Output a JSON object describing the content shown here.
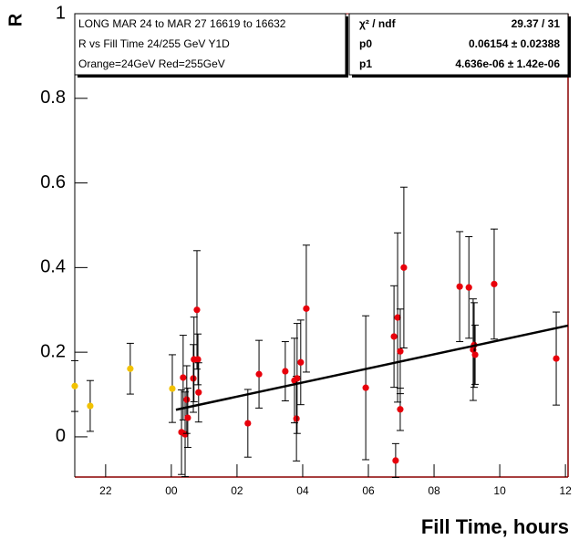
{
  "chart_data": {
    "type": "scatter",
    "y_label": "R",
    "x_label": "Fill Time, hours",
    "annotations": [
      "LONG MAR 24 to MAR 27 16619 to 16632",
      "R vs Fill Time 24/255 GeV Y1D",
      "Orange=24GeV  Red=255GeV"
    ],
    "stats": {
      "labels": [
        "χ² / ndf",
        "p0",
        "p1"
      ],
      "values": [
        "29.37 / 31",
        "0.06154 ± 0.02388",
        "4.636e-06 ± 1.42e-06"
      ]
    },
    "xlim": [
      -2.94,
      12.08
    ],
    "ylim": [
      -0.095,
      1
    ],
    "xticks": [
      {
        "value": -2,
        "label": "22"
      },
      {
        "value": 0,
        "label": "00"
      },
      {
        "value": 2,
        "label": "02"
      },
      {
        "value": 4,
        "label": "04"
      },
      {
        "value": 6,
        "label": "06"
      },
      {
        "value": 8,
        "label": "08"
      },
      10,
      12
    ],
    "yticks": [
      0,
      0.2,
      0.4,
      0.6,
      0.8,
      1
    ],
    "series": [
      {
        "color": "#f2c200",
        "x": [
          -2.94,
          -2.47,
          -1.25,
          0.03
        ],
        "values": [
          0.12,
          0.073,
          0.161,
          0.114
        ],
        "errors": [
          0.06,
          0.06,
          0.06,
          0.08
        ]
      },
      {
        "color": "#e8000b",
        "x": [
          0.31,
          0.36,
          0.42,
          0.47,
          0.5,
          0.67,
          0.69,
          0.78,
          0.81,
          0.83,
          2.33,
          2.67,
          3.47,
          3.75,
          3.81,
          3.83,
          3.94,
          4.11,
          5.92,
          6.78,
          6.83,
          6.89,
          6.97,
          6.97,
          7.08,
          8.78,
          9.06,
          9.19,
          9.22,
          9.25,
          9.83,
          11.72
        ],
        "values": [
          0.011,
          0.14,
          0.006,
          0.088,
          0.045,
          0.138,
          0.183,
          0.3,
          0.183,
          0.105,
          0.032,
          0.148,
          0.155,
          0.133,
          0.043,
          0.138,
          0.176,
          0.303,
          0.116,
          0.237,
          -0.056,
          0.282,
          0.202,
          0.065,
          0.4,
          0.355,
          0.353,
          0.206,
          0.217,
          0.194,
          0.361,
          0.185
        ],
        "errors": [
          0.1,
          0.1,
          0.1,
          0.08,
          0.07,
          0.08,
          0.1,
          0.14,
          0.06,
          0.07,
          0.08,
          0.08,
          0.07,
          0.1,
          0.1,
          0.13,
          0.1,
          0.15,
          0.17,
          0.12,
          0.04,
          0.2,
          0.1,
          0.05,
          0.19,
          0.13,
          0.12,
          0.12,
          0.1,
          0.07,
          0.13,
          0.11
        ]
      }
    ],
    "fit": {
      "color": "#000000",
      "x": [
        0.14,
        12.08
      ],
      "values": [
        0.064,
        0.263
      ]
    }
  }
}
